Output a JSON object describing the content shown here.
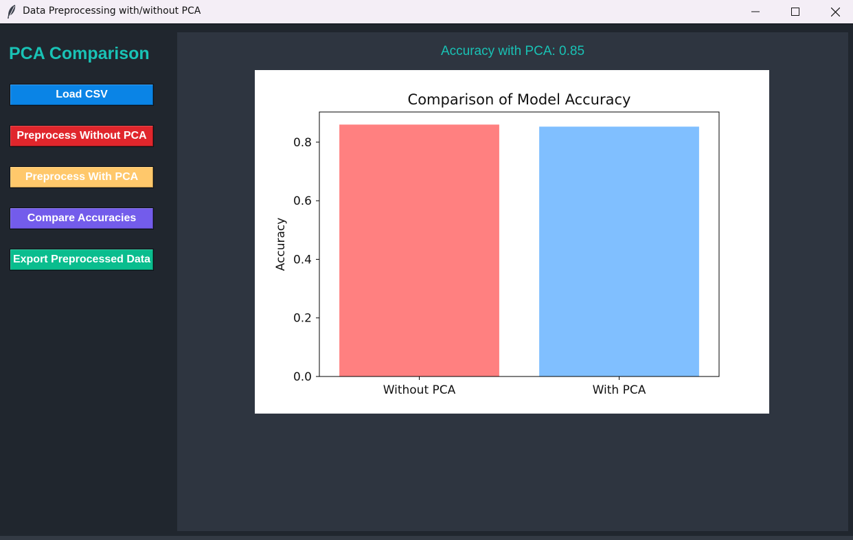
{
  "window": {
    "title": "Data Preprocessing with/without PCA",
    "app_icon": "feather-icon",
    "controls": [
      "minimize-icon",
      "maximize-icon",
      "close-icon"
    ]
  },
  "sidebar": {
    "title": "PCA Comparison",
    "title_color": "#19c2b5",
    "buttons": [
      {
        "label": "Load CSV",
        "color": "#0a84e6"
      },
      {
        "label": "Preprocess Without PCA",
        "color": "#e0262c"
      },
      {
        "label": "Preprocess With PCA",
        "color": "#ffc86b"
      },
      {
        "label": "Compare Accuracies",
        "color": "#735ceb"
      },
      {
        "label": "Export Preprocessed Data",
        "color": "#0abd8e"
      }
    ]
  },
  "main": {
    "status_text": "Accuracy with PCA: 0.85"
  },
  "chart_data": {
    "type": "bar",
    "title": "Comparison of Model Accuracy",
    "xlabel": "",
    "ylabel": "Accuracy",
    "categories": [
      "Without PCA",
      "With PCA"
    ],
    "values": [
      0.86,
      0.853
    ],
    "colors": [
      "#ff8080",
      "#80bfff"
    ],
    "ylim": [
      0,
      0.903
    ],
    "yticks": [
      0.0,
      0.2,
      0.4,
      0.6,
      0.8
    ],
    "ytick_labels": [
      "0.0",
      "0.2",
      "0.4",
      "0.6",
      "0.8"
    ],
    "grid": false,
    "legend": "none"
  }
}
